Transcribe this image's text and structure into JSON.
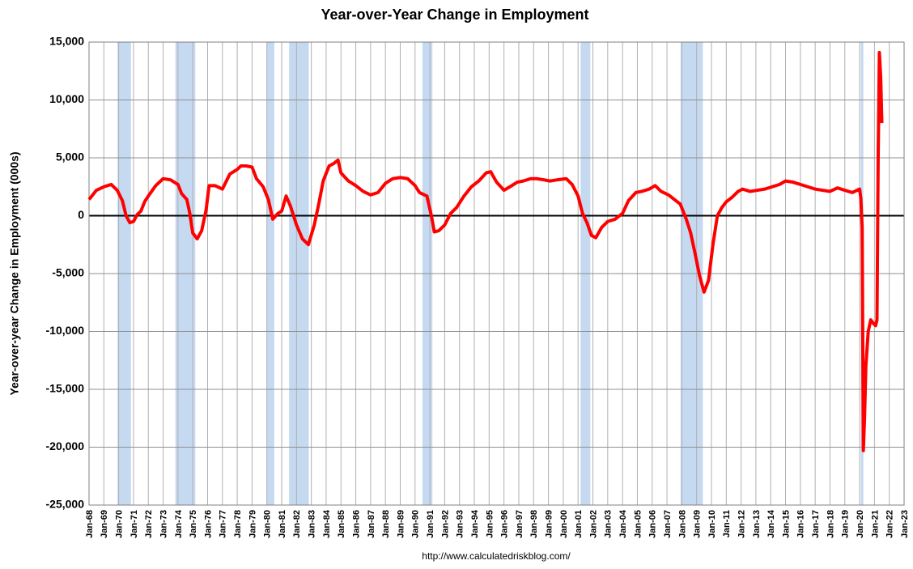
{
  "chart_data": {
    "type": "line",
    "title": "Year-over-Year Change in Employment",
    "y_label": "Year-over-year Change in Employment (000s)",
    "source": "http://www.calculatedriskblog.com/",
    "x": [
      1968.0,
      1968.5,
      1969.0,
      1969.5,
      1969.9,
      1970.25,
      1970.5,
      1970.75,
      1971.0,
      1971.25,
      1971.5,
      1971.75,
      1972.0,
      1972.5,
      1973.0,
      1973.5,
      1974.0,
      1974.25,
      1974.6,
      1974.8,
      1975.0,
      1975.3,
      1975.6,
      1975.9,
      1976.1,
      1976.5,
      1977.0,
      1977.5,
      1978.0,
      1978.25,
      1978.6,
      1979.0,
      1979.3,
      1979.75,
      1980.1,
      1980.4,
      1980.75,
      1981.0,
      1981.3,
      1981.6,
      1982.0,
      1982.4,
      1982.8,
      1983.2,
      1983.5,
      1983.8,
      1984.2,
      1984.5,
      1984.8,
      1985.0,
      1985.5,
      1986.0,
      1986.5,
      1987.0,
      1987.5,
      1988.0,
      1988.5,
      1989.0,
      1989.5,
      1990.0,
      1990.3,
      1990.8,
      1991.1,
      1991.3,
      1991.6,
      1992.0,
      1992.4,
      1992.8,
      1993.3,
      1993.8,
      1994.3,
      1994.8,
      1995.1,
      1995.5,
      1996.0,
      1996.4,
      1996.9,
      1997.3,
      1997.8,
      1998.2,
      1998.7,
      1999.1,
      1999.6,
      2000.2,
      2000.6,
      2001.0,
      2001.3,
      2001.6,
      2001.9,
      2002.2,
      2002.6,
      2003.0,
      2003.5,
      2004.0,
      2004.4,
      2004.9,
      2005.3,
      2005.8,
      2006.2,
      2006.6,
      2007.1,
      2007.6,
      2007.9,
      2008.3,
      2008.6,
      2008.9,
      2009.2,
      2009.5,
      2009.8,
      2010.1,
      2010.4,
      2010.7,
      2011.0,
      2011.4,
      2011.8,
      2012.1,
      2012.6,
      2013.1,
      2013.6,
      2014.1,
      2014.6,
      2015.0,
      2015.5,
      2016.0,
      2016.5,
      2017.0,
      2017.5,
      2018.0,
      2018.5,
      2019.0,
      2019.5,
      2020.0,
      2020.08,
      2020.17,
      2020.25,
      2020.33,
      2020.42,
      2020.58,
      2020.75,
      2020.92,
      2021.08,
      2021.17,
      2021.25,
      2021.33,
      2021.42,
      2021.5
    ],
    "series": [
      {
        "color": "#ff0000",
        "values": [
          1400,
          2200,
          2500,
          2700,
          2200,
          1300,
          0,
          -600,
          -500,
          100,
          400,
          1200,
          1700,
          2600,
          3200,
          3100,
          2700,
          1900,
          1400,
          200,
          -1500,
          -2000,
          -1300,
          500,
          2600,
          2600,
          2300,
          3600,
          4000,
          4300,
          4300,
          4200,
          3200,
          2500,
          1400,
          -300,
          200,
          400,
          1700,
          800,
          -800,
          -2000,
          -2500,
          -800,
          1000,
          3000,
          4300,
          4500,
          4800,
          3700,
          3000,
          2600,
          2100,
          1800,
          2000,
          2800,
          3200,
          3300,
          3200,
          2600,
          2000,
          1700,
          0,
          -1400,
          -1300,
          -800,
          200,
          700,
          1700,
          2500,
          3000,
          3700,
          3800,
          2900,
          2200,
          2500,
          2900,
          3000,
          3200,
          3200,
          3100,
          3000,
          3100,
          3200,
          2700,
          1700,
          200,
          -600,
          -1700,
          -1900,
          -1000,
          -500,
          -300,
          200,
          1300,
          2000,
          2100,
          2300,
          2600,
          2100,
          1800,
          1300,
          1000,
          -300,
          -1500,
          -3300,
          -5200,
          -6600,
          -5600,
          -2500,
          0,
          700,
          1200,
          1600,
          2100,
          2300,
          2100,
          2200,
          2300,
          2500,
          2700,
          3000,
          2900,
          2700,
          2500,
          2300,
          2200,
          2100,
          2400,
          2200,
          2000,
          2300,
          1500,
          -1000,
          -20300,
          -17500,
          -13000,
          -10000,
          -9000,
          -9300,
          -9500,
          -9000,
          5000,
          14100,
          12000,
          8000
        ]
      }
    ],
    "recessions": [
      [
        1969.92,
        1970.83
      ],
      [
        1973.83,
        1975.17
      ],
      [
        1980.0,
        1980.5
      ],
      [
        1981.5,
        1982.83
      ],
      [
        1990.5,
        1991.17
      ],
      [
        2001.17,
        2001.83
      ],
      [
        2007.92,
        2009.42
      ],
      [
        2020.08,
        2020.25
      ]
    ],
    "recession_color": "#c5d9f1",
    "xlim": [
      1968,
      2023
    ],
    "xticks": [
      {
        "value": 1968,
        "label": "Jan-68"
      },
      {
        "value": 1969,
        "label": "Jan-69"
      },
      {
        "value": 1970,
        "label": "Jan-70"
      },
      {
        "value": 1971,
        "label": "Jan-71"
      },
      {
        "value": 1972,
        "label": "Jan-72"
      },
      {
        "value": 1973,
        "label": "Jan-73"
      },
      {
        "value": 1974,
        "label": "Jan-74"
      },
      {
        "value": 1975,
        "label": "Jan-75"
      },
      {
        "value": 1976,
        "label": "Jan-76"
      },
      {
        "value": 1977,
        "label": "Jan-77"
      },
      {
        "value": 1978,
        "label": "Jan-78"
      },
      {
        "value": 1979,
        "label": "Jan-79"
      },
      {
        "value": 1980,
        "label": "Jan-80"
      },
      {
        "value": 1981,
        "label": "Jan-81"
      },
      {
        "value": 1982,
        "label": "Jan-82"
      },
      {
        "value": 1983,
        "label": "Jan-83"
      },
      {
        "value": 1984,
        "label": "Jan-84"
      },
      {
        "value": 1985,
        "label": "Jan-85"
      },
      {
        "value": 1986,
        "label": "Jan-86"
      },
      {
        "value": 1987,
        "label": "Jan-87"
      },
      {
        "value": 1988,
        "label": "Jan-88"
      },
      {
        "value": 1989,
        "label": "Jan-89"
      },
      {
        "value": 1990,
        "label": "Jan-90"
      },
      {
        "value": 1991,
        "label": "Jan-91"
      },
      {
        "value": 1992,
        "label": "Jan-92"
      },
      {
        "value": 1993,
        "label": "Jan-93"
      },
      {
        "value": 1994,
        "label": "Jan-94"
      },
      {
        "value": 1995,
        "label": "Jan-95"
      },
      {
        "value": 1996,
        "label": "Jan-96"
      },
      {
        "value": 1997,
        "label": "Jan-97"
      },
      {
        "value": 1998,
        "label": "Jan-98"
      },
      {
        "value": 1999,
        "label": "Jan-99"
      },
      {
        "value": 2000,
        "label": "Jan-00"
      },
      {
        "value": 2001,
        "label": "Jan-01"
      },
      {
        "value": 2002,
        "label": "Jan-02"
      },
      {
        "value": 2003,
        "label": "Jan-03"
      },
      {
        "value": 2004,
        "label": "Jan-04"
      },
      {
        "value": 2005,
        "label": "Jan-05"
      },
      {
        "value": 2006,
        "label": "Jan-06"
      },
      {
        "value": 2007,
        "label": "Jan-07"
      },
      {
        "value": 2008,
        "label": "Jan-08"
      },
      {
        "value": 2009,
        "label": "Jan-09"
      },
      {
        "value": 2010,
        "label": "Jan-10"
      },
      {
        "value": 2011,
        "label": "Jan-11"
      },
      {
        "value": 2012,
        "label": "Jan-12"
      },
      {
        "value": 2013,
        "label": "Jan-13"
      },
      {
        "value": 2014,
        "label": "Jan-14"
      },
      {
        "value": 2015,
        "label": "Jan-15"
      },
      {
        "value": 2016,
        "label": "Jan-16"
      },
      {
        "value": 2017,
        "label": "Jan-17"
      },
      {
        "value": 2018,
        "label": "Jan-18"
      },
      {
        "value": 2019,
        "label": "Jan-19"
      },
      {
        "value": 2020,
        "label": "Jan-20"
      },
      {
        "value": 2021,
        "label": "Jan-21"
      },
      {
        "value": 2022,
        "label": "Jan-22"
      },
      {
        "value": 2023,
        "label": "Jan-23"
      }
    ],
    "ylim": [
      -25000,
      15000
    ],
    "yticks": [
      {
        "value": -25000,
        "label": "-25,000"
      },
      {
        "value": -20000,
        "label": "-20,000"
      },
      {
        "value": -15000,
        "label": "-15,000"
      },
      {
        "value": -10000,
        "label": "-10,000"
      },
      {
        "value": -5000,
        "label": "-5,000"
      },
      0,
      {
        "value": 5000,
        "label": "5,000"
      },
      {
        "value": 10000,
        "label": "10,000"
      },
      {
        "value": 15000,
        "label": "15,000"
      }
    ],
    "grid": true
  }
}
